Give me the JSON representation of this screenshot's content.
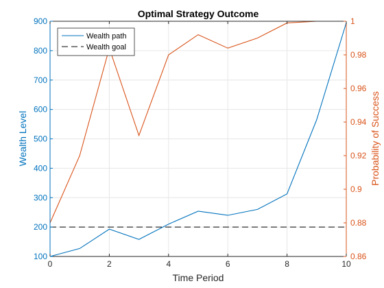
{
  "chart_data": {
    "type": "line",
    "title": "Optimal Strategy Outcome",
    "xlabel": "Time Period",
    "ylabel_left": "Wealth Level",
    "ylabel_right": "Probability of Success",
    "xlim": [
      0,
      10
    ],
    "ylim_left": [
      100,
      900
    ],
    "ylim_right": [
      0.86,
      1.0
    ],
    "x_ticks": [
      0,
      2,
      4,
      6,
      8,
      10
    ],
    "y_left_ticks": [
      100,
      200,
      300,
      400,
      500,
      600,
      700,
      800,
      900
    ],
    "y_right_ticks": [
      0.86,
      0.88,
      0.9,
      0.92,
      0.94,
      0.96,
      0.98,
      1.0
    ],
    "y_right_tick_labels": [
      "0.86",
      "0.88",
      "0.9",
      "0.92",
      "0.94",
      "0.96",
      "0.98",
      "1"
    ],
    "grid": true,
    "legend_position": "top-left",
    "series": [
      {
        "name": "Wealth path",
        "axis": "left",
        "style": "solid",
        "color": "#0072BD",
        "x": [
          0,
          1,
          2,
          3,
          4,
          5,
          6,
          7,
          8,
          9,
          10
        ],
        "values": [
          100,
          127,
          193,
          158,
          210,
          254,
          240,
          260,
          313,
          565,
          895
        ]
      },
      {
        "name": "Wealth goal",
        "axis": "left",
        "style": "dashed",
        "color": "#000000",
        "x": [
          0,
          10
        ],
        "values": [
          200,
          200
        ]
      },
      {
        "axis": "right",
        "style": "solid",
        "color": "#D95319",
        "x": [
          0,
          1,
          2,
          3,
          4,
          5,
          6,
          7,
          8,
          9,
          10
        ],
        "values": [
          0.88,
          0.92,
          0.984,
          0.932,
          0.98,
          0.992,
          0.984,
          0.99,
          0.999,
          1.0,
          1.0
        ]
      }
    ],
    "colors": {
      "left_axis": "#0072BD",
      "right_axis": "#D95319",
      "grid": "#e6e6e6",
      "frame": "#262626"
    }
  }
}
